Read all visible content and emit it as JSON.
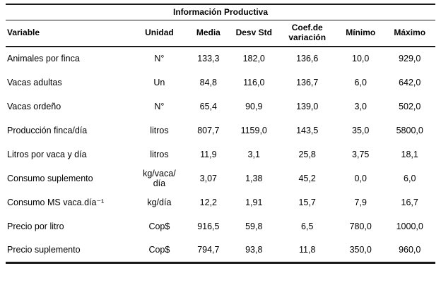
{
  "table": {
    "title": "Información Productiva",
    "columns": [
      "Variable",
      "Unidad",
      "Media",
      "Desv Std",
      "Coef.de\nvariación",
      "Mínimo",
      "Máximo"
    ],
    "rows": [
      [
        "Animales por finca",
        "N°",
        "133,3",
        "182,0",
        "136,6",
        "10,0",
        "929,0"
      ],
      [
        "Vacas adultas",
        "Un",
        "84,8",
        "116,0",
        "136,7",
        "6,0",
        "642,0"
      ],
      [
        "Vacas ordeño",
        "N°",
        "65,4",
        "90,9",
        "139,0",
        "3,0",
        "502,0"
      ],
      [
        "Producción finca/día",
        "litros",
        "807,7",
        "1159,0",
        "143,5",
        "35,0",
        "5800,0"
      ],
      [
        "Litros por vaca y día",
        "litros",
        "11,9",
        "3,1",
        "25,8",
        "3,75",
        "18,1"
      ],
      [
        "Consumo suplemento",
        "kg/vaca/\ndía",
        "3,07",
        "1,38",
        "45,2",
        "0,0",
        "6,0"
      ],
      [
        "Consumo MS vaca.día⁻¹",
        "kg/día",
        "12,2",
        "1,91",
        "15,7",
        "7,9",
        "16,7"
      ],
      [
        "Precio por litro",
        "Cop$",
        "916,5",
        "59,8",
        "6,5",
        "780,0",
        "1000,0"
      ],
      [
        "Precio suplemento",
        "Cop$",
        "794,7",
        "93,8",
        "11,8",
        "350,0",
        "960,0"
      ]
    ],
    "colors": {
      "border": "#1a1a1a",
      "text": "#000000",
      "background": "#ffffff"
    }
  }
}
